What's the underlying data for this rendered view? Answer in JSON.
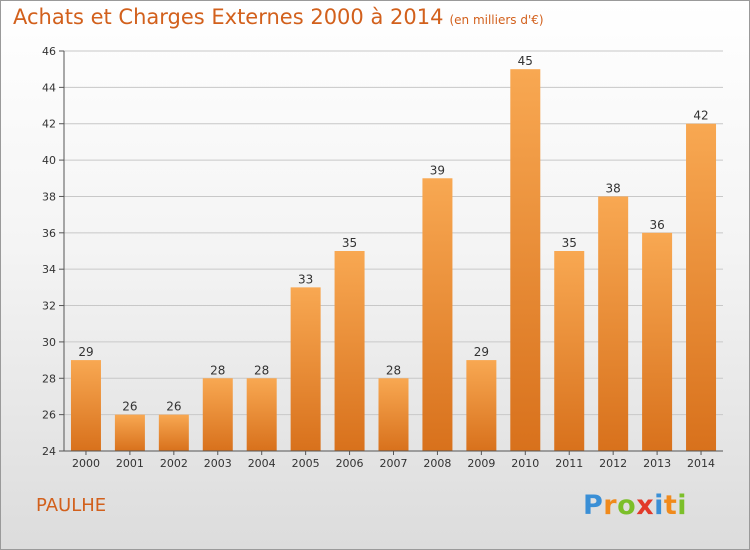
{
  "chart_data": {
    "type": "bar",
    "title": "Achats et Charges Externes 2000 à 2014",
    "unit_label": "(en milliers d'€)",
    "categories": [
      "2000",
      "2001",
      "2002",
      "2003",
      "2004",
      "2005",
      "2006",
      "2007",
      "2008",
      "2009",
      "2010",
      "2011",
      "2012",
      "2013",
      "2014"
    ],
    "values": [
      29,
      26,
      26,
      28,
      28,
      33,
      35,
      28,
      39,
      29,
      45,
      35,
      38,
      36,
      42
    ],
    "ylim": [
      24,
      46
    ],
    "yticks": [
      24,
      26,
      28,
      30,
      32,
      34,
      36,
      38,
      40,
      42,
      44,
      46
    ],
    "xlabel": "",
    "ylabel": "",
    "bar_color": "#e8832a",
    "text_color": "#d2601c"
  },
  "footer": {
    "commune": "PAULHE",
    "logo_letters": [
      "P",
      "r",
      "o",
      "x",
      "i",
      "t",
      "i"
    ],
    "logo_colors": [
      "#3a8fd6",
      "#f08a1c",
      "#7cbf2a",
      "#e23a2a",
      "#3a8fd6",
      "#f08a1c",
      "#7cbf2a"
    ]
  }
}
